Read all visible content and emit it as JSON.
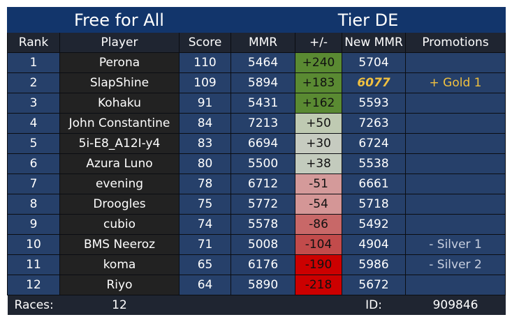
{
  "title": {
    "mode": "Free for All",
    "tier": "Tier DE"
  },
  "columns": [
    "Rank",
    "Player",
    "Score",
    "MMR",
    "+/-",
    "New MMR",
    "Promotions"
  ],
  "rows": [
    {
      "rank": "1",
      "player": "Perona",
      "score": "110",
      "mmr": "5464",
      "diff": "+240",
      "new_mmr": "5704",
      "promotion": "",
      "diff_color": "#5a8a32"
    },
    {
      "rank": "2",
      "player": "SlapShine",
      "score": "109",
      "mmr": "5894",
      "diff": "+183",
      "new_mmr": "6077",
      "promotion": "+ Gold 1",
      "diff_color": "#5a8a32"
    },
    {
      "rank": "3",
      "player": "Kohaku",
      "score": "91",
      "mmr": "5431",
      "diff": "+162",
      "new_mmr": "5593",
      "promotion": "",
      "diff_color": "#5a8a32"
    },
    {
      "rank": "4",
      "player": "John Constantine",
      "score": "84",
      "mmr": "7213",
      "diff": "+50",
      "new_mmr": "7263",
      "promotion": "",
      "diff_color": "#bfcab2"
    },
    {
      "rank": "5",
      "player": "5i-E8_A12I-y4",
      "score": "83",
      "mmr": "6694",
      "diff": "+30",
      "new_mmr": "6724",
      "promotion": "",
      "diff_color": "#c6cbc0"
    },
    {
      "rank": "6",
      "player": "Azura Luno",
      "score": "80",
      "mmr": "5500",
      "diff": "+38",
      "new_mmr": "5538",
      "promotion": "",
      "diff_color": "#c3cbbd"
    },
    {
      "rank": "7",
      "player": "evening",
      "score": "78",
      "mmr": "6712",
      "diff": "-51",
      "new_mmr": "6661",
      "promotion": "",
      "diff_color": "#d49a9a"
    },
    {
      "rank": "8",
      "player": "Droogles",
      "score": "75",
      "mmr": "5772",
      "diff": "-54",
      "new_mmr": "5718",
      "promotion": "",
      "diff_color": "#d49696"
    },
    {
      "rank": "9",
      "player": "cubio",
      "score": "74",
      "mmr": "5578",
      "diff": "-86",
      "new_mmr": "5492",
      "promotion": "",
      "diff_color": "#c86868"
    },
    {
      "rank": "10",
      "player": "BMS Neeroz",
      "score": "71",
      "mmr": "5008",
      "diff": "-104",
      "new_mmr": "4904",
      "promotion": "- Silver 1",
      "diff_color": "#c24b4b"
    },
    {
      "rank": "11",
      "player": "koma",
      "score": "65",
      "mmr": "6176",
      "diff": "-190",
      "new_mmr": "5986",
      "promotion": "- Silver 2",
      "diff_color": "#cc0000"
    },
    {
      "rank": "12",
      "player": "Riyo",
      "score": "64",
      "mmr": "5890",
      "diff": "-218",
      "new_mmr": "5672",
      "promotion": "",
      "diff_color": "#cc0000"
    }
  ],
  "footer": {
    "races_label": "Races:",
    "races": "12",
    "id_label": "ID:",
    "id": "909846"
  }
}
